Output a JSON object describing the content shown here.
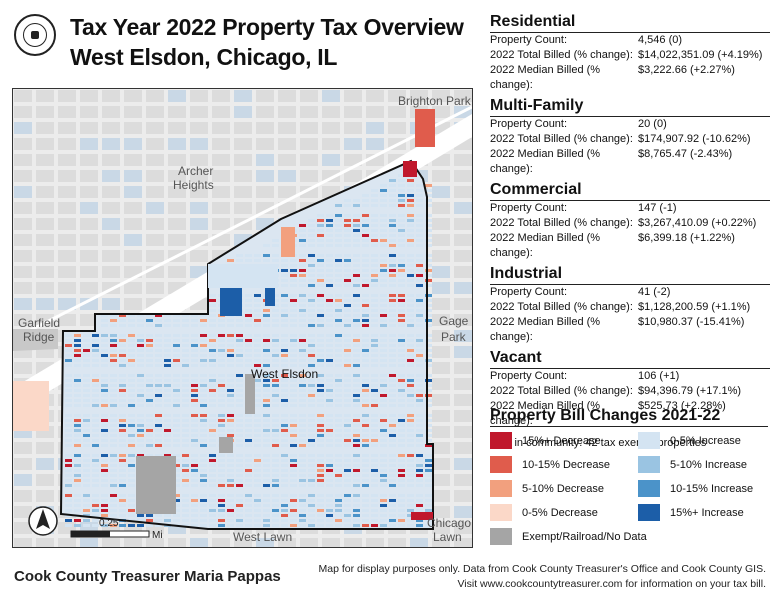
{
  "header": {
    "title_line1": "Tax Year 2022 Property Tax Overview",
    "title_line2": "West Elsdon, Chicago, IL",
    "seal": "cook-county-seal"
  },
  "map": {
    "community_label": "West Elsdon",
    "place_labels": {
      "brighton_park": "Brighton Park",
      "archer_heights_1": "Archer",
      "archer_heights_2": "Heights",
      "garfield_ridge_1": "Garfield",
      "garfield_ridge_2": "Ridge",
      "gage_park_1": "Gage",
      "gage_park_2": "Park",
      "west_lawn": "West Lawn",
      "chicago_lawn_1": "Chicago",
      "chicago_lawn_2": "Lawn"
    },
    "scale_tick": "0.25",
    "scale_unit": "Mi",
    "north_icon": "north-arrow-icon"
  },
  "stats": {
    "sections": [
      {
        "title": "Residential",
        "rows": [
          {
            "label": "Property Count:",
            "value": "4,546 (0)"
          },
          {
            "label": "2022 Total Billed (% change):",
            "value": "$14,022,351.09 (+4.19%)"
          },
          {
            "label": "2022 Median Billed (% change):",
            "value": "$3,222.66 (+2.27%)"
          }
        ]
      },
      {
        "title": "Multi-Family",
        "rows": [
          {
            "label": "Property Count:",
            "value": "20 (0)"
          },
          {
            "label": "2022 Total Billed (% change):",
            "value": "$174,907.92 (-10.62%)"
          },
          {
            "label": "2022 Median Billed (% change):",
            "value": "$8,765.47 (-2.43%)"
          }
        ]
      },
      {
        "title": "Commercial",
        "rows": [
          {
            "label": "Property Count:",
            "value": "147 (-1)"
          },
          {
            "label": "2022 Total Billed (% change):",
            "value": "$3,267,410.09 (+0.22%)"
          },
          {
            "label": "2022 Median Billed (% change):",
            "value": "$6,399.18 (+1.22%)"
          }
        ]
      },
      {
        "title": "Industrial",
        "rows": [
          {
            "label": "Property Count:",
            "value": "41 (-2)"
          },
          {
            "label": "2022 Total Billed (% change):",
            "value": "$1,128,200.59 (+1.1%)"
          },
          {
            "label": "2022 Median Billed (% change):",
            "value": "$10,980.37 (-15.41%)"
          }
        ]
      },
      {
        "title": "Vacant",
        "rows": [
          {
            "label": "Property Count:",
            "value": "106 (+1)"
          },
          {
            "label": "2022 Total Billed (% change):",
            "value": "$94,396.79 (+17.1%)"
          },
          {
            "label": "2022 Median Billed (% change):",
            "value": "$525.73 (+2.28%)"
          }
        ]
      }
    ],
    "exempt_note": "Also in community: 42 tax exempt properties"
  },
  "legend": {
    "title": "Property Bill Changes 2021-22",
    "items": [
      {
        "label": "15%+ Decrease",
        "color": "#c0182c"
      },
      {
        "label": "10-15% Decrease",
        "color": "#e05c4c"
      },
      {
        "label": "5-10% Decrease",
        "color": "#f2a07e"
      },
      {
        "label": "0-5% Decrease",
        "color": "#fbd8c8"
      },
      {
        "label": "Exempt/Railroad/No Data",
        "color": "#a5a5a5"
      },
      {
        "label": "0-5% Increase",
        "color": "#d4e4f2"
      },
      {
        "label": "5-10% Increase",
        "color": "#9ac4e2"
      },
      {
        "label": "10-15% Increase",
        "color": "#4b93c9"
      },
      {
        "label": "15%+ Increase",
        "color": "#1c5ea8"
      }
    ]
  },
  "footer": {
    "treasurer": "Cook County Treasurer Maria Pappas",
    "disclaimer1": "Map for display purposes only. Data from Cook County Treasurer's Office and Cook County GIS.",
    "disclaimer2": "Visit www.cookcountytreasurer.com for information on your tax bill."
  }
}
